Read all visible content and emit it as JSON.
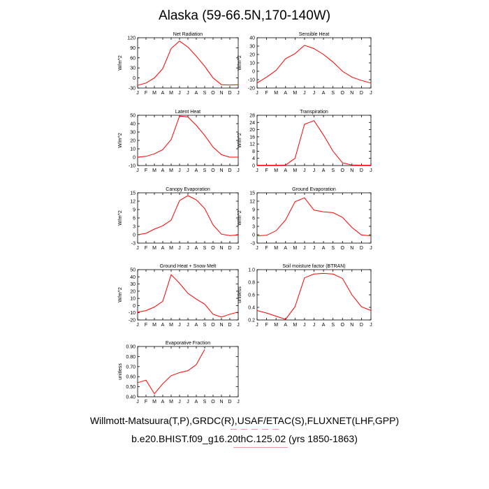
{
  "title": "Alaska (59-66.5N,170-140W)",
  "footer": {
    "line1": "Willmott-Matsuura(T,P),GRDC(R),USAF/ETAC(S),FLUXNET(LHF,GPP)",
    "line2": "b.e20.BHIST.f09_g16.20thC.125.02 (yrs 1850-1863)"
  },
  "colors": {
    "series": "#ff0000",
    "axis": "#000000"
  },
  "chart_data": [
    {
      "type": "line",
      "title": "Net Radiation",
      "ylabel": "W/m^2",
      "x": [
        "J",
        "F",
        "M",
        "A",
        "M",
        "J",
        "J",
        "A",
        "S",
        "O",
        "N",
        "D",
        "J"
      ],
      "ylim": [
        -30,
        120
      ],
      "yticks": [
        -30,
        0,
        30,
        60,
        90,
        120
      ],
      "yticklabels": [
        "-30",
        "0",
        "30",
        "60",
        "90",
        "120"
      ],
      "values": [
        -22,
        -15,
        0,
        28,
        88,
        110,
        92,
        65,
        35,
        0,
        -20,
        -21,
        -20
      ]
    },
    {
      "type": "line",
      "title": "Sensible Heat",
      "ylabel": "W/m^2",
      "x": [
        "J",
        "F",
        "M",
        "A",
        "M",
        "J",
        "J",
        "A",
        "S",
        "O",
        "N",
        "D",
        "J"
      ],
      "ylim": [
        -20,
        40
      ],
      "yticks": [
        -20,
        -10,
        0,
        10,
        20,
        30,
        40
      ],
      "yticklabels": [
        "-20",
        "-10",
        "0",
        "10",
        "20",
        "30",
        "40"
      ],
      "values": [
        -14,
        -7,
        1,
        15,
        21,
        31,
        27,
        20,
        11,
        0,
        -7,
        -11,
        -14
      ]
    },
    {
      "type": "line",
      "title": "Latent Heat",
      "ylabel": "W/m^2",
      "x": [
        "J",
        "F",
        "M",
        "A",
        "M",
        "J",
        "J",
        "A",
        "S",
        "O",
        "N",
        "D",
        "J"
      ],
      "ylim": [
        -10,
        50
      ],
      "yticks": [
        -10,
        0,
        10,
        20,
        30,
        40,
        50
      ],
      "yticklabels": [
        "-10",
        "0",
        "10",
        "20",
        "30",
        "40",
        "50"
      ],
      "values": [
        0,
        1,
        4,
        9,
        21,
        49,
        48,
        38,
        26,
        12,
        3,
        0,
        0
      ]
    },
    {
      "type": "line",
      "title": "Transpiration",
      "ylabel": "W/m^2",
      "x": [
        "J",
        "F",
        "M",
        "A",
        "M",
        "J",
        "J",
        "A",
        "S",
        "O",
        "N",
        "D",
        "J"
      ],
      "ylim": [
        0,
        28
      ],
      "yticks": [
        0,
        4,
        8,
        12,
        16,
        20,
        24,
        28
      ],
      "yticklabels": [
        "0",
        "4",
        "8",
        "12",
        "16",
        "20",
        "24",
        "28"
      ],
      "values": [
        0.2,
        0.2,
        0.2,
        0.3,
        4,
        23,
        25,
        17,
        8,
        1.5,
        0.3,
        0.2,
        0.2
      ]
    },
    {
      "type": "line",
      "title": "Canopy Evaporation",
      "ylabel": "W/m^2",
      "x": [
        "J",
        "F",
        "M",
        "A",
        "M",
        "J",
        "J",
        "A",
        "S",
        "O",
        "N",
        "D",
        "J"
      ],
      "ylim": [
        -3,
        15
      ],
      "yticks": [
        -3,
        0,
        3,
        6,
        9,
        12,
        15
      ],
      "yticklabels": [
        "-3",
        "0",
        "3",
        "6",
        "9",
        "12",
        "15"
      ],
      "values": [
        0,
        0.5,
        2,
        3.2,
        5.2,
        12.2,
        14,
        12.5,
        9.4,
        3.5,
        0.2,
        -0.3,
        -0.1
      ]
    },
    {
      "type": "line",
      "title": "Ground Evaporation",
      "ylabel": "W/m^2",
      "x": [
        "J",
        "F",
        "M",
        "A",
        "M",
        "J",
        "J",
        "A",
        "S",
        "O",
        "N",
        "D",
        "J"
      ],
      "ylim": [
        -3,
        15
      ],
      "yticks": [
        -3,
        0,
        3,
        6,
        9,
        12,
        15
      ],
      "yticklabels": [
        "-3",
        "0",
        "3",
        "6",
        "9",
        "12",
        "15"
      ],
      "values": [
        -0.4,
        -0.2,
        1.4,
        5.3,
        11.8,
        13.2,
        8.8,
        8.2,
        7.9,
        6.2,
        2.6,
        -0.1,
        -0.4
      ]
    },
    {
      "type": "line",
      "title": "Ground Heat + Snow Melt",
      "ylabel": "W/m^2",
      "x": [
        "J",
        "F",
        "M",
        "A",
        "M",
        "J",
        "J",
        "A",
        "S",
        "O",
        "N",
        "D",
        "J"
      ],
      "ylim": [
        -20,
        50
      ],
      "yticks": [
        -20,
        -10,
        0,
        10,
        20,
        30,
        40,
        50
      ],
      "yticklabels": [
        "-20",
        "-10",
        "0",
        "10",
        "20",
        "30",
        "40",
        "50"
      ],
      "values": [
        -9,
        -7,
        -2,
        6,
        43,
        31,
        17,
        9,
        2,
        -12,
        -16,
        -12,
        -9
      ]
    },
    {
      "type": "line",
      "title": "Soil moisture factor (BTRAN)",
      "ylabel": "unitless",
      "x": [
        "J",
        "F",
        "M",
        "A",
        "M",
        "J",
        "J",
        "A",
        "S",
        "O",
        "N",
        "D",
        "J"
      ],
      "ylim": [
        0.2,
        1.0
      ],
      "yticks": [
        0.2,
        0.4,
        0.6,
        0.8,
        1.0
      ],
      "yticklabels": [
        "0.2",
        "0.4",
        "0.6",
        "0.8",
        "1.0"
      ],
      "values": [
        0.35,
        0.31,
        0.26,
        0.21,
        0.41,
        0.87,
        0.93,
        0.94,
        0.93,
        0.86,
        0.6,
        0.41,
        0.35
      ]
    },
    {
      "type": "line",
      "title": "Evaporative Fraction",
      "ylabel": "unitless",
      "x": [
        "J",
        "F",
        "M",
        "A",
        "M",
        "J",
        "J",
        "A",
        "S",
        "O",
        "N",
        "D",
        "J"
      ],
      "ylim": [
        0.4,
        0.9
      ],
      "yticks": [
        0.4,
        0.5,
        0.6,
        0.7,
        0.8,
        0.9
      ],
      "yticklabels": [
        "0.40",
        "0.50",
        "0.60",
        "0.70",
        "0.80",
        "0.90"
      ],
      "values": [
        0.54,
        0.565,
        0.43,
        0.53,
        0.61,
        0.64,
        0.66,
        0.72,
        0.87,
        null,
        null,
        null,
        null
      ]
    }
  ]
}
